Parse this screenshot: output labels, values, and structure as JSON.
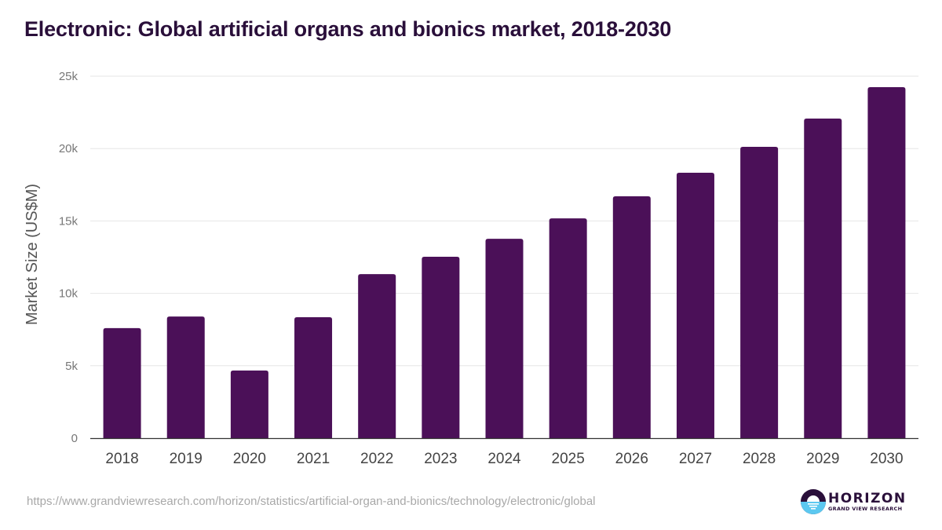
{
  "chart_data": {
    "type": "bar",
    "title": "Electronic: Global artificial organs and bionics market, 2018-2030",
    "xlabel": "",
    "ylabel": "Market Size (US$M)",
    "ylim": [
      0,
      25000
    ],
    "yticks": [
      0,
      5000,
      10000,
      15000,
      20000,
      25000
    ],
    "ytick_labels": [
      "0",
      "5k",
      "10k",
      "15k",
      "20k",
      "25k"
    ],
    "grid": true,
    "legend": "none",
    "categories": [
      "2018",
      "2019",
      "2020",
      "2021",
      "2022",
      "2023",
      "2024",
      "2025",
      "2026",
      "2027",
      "2028",
      "2029",
      "2030"
    ],
    "values": [
      7600,
      8400,
      4670,
      8350,
      11330,
      12530,
      13770,
      15180,
      16700,
      18330,
      20120,
      22070,
      24240
    ],
    "bar_color": "#4b1058",
    "gridline_color": "#e6e6e6",
    "axis_color": "#333333"
  },
  "footer": {
    "source_url": "https://www.grandviewresearch.com/horizon/statistics/artificial-organ-and-bionics/technology/electronic/global",
    "logo_name": "HORIZON",
    "logo_sub": "GRAND VIEW RESEARCH"
  }
}
